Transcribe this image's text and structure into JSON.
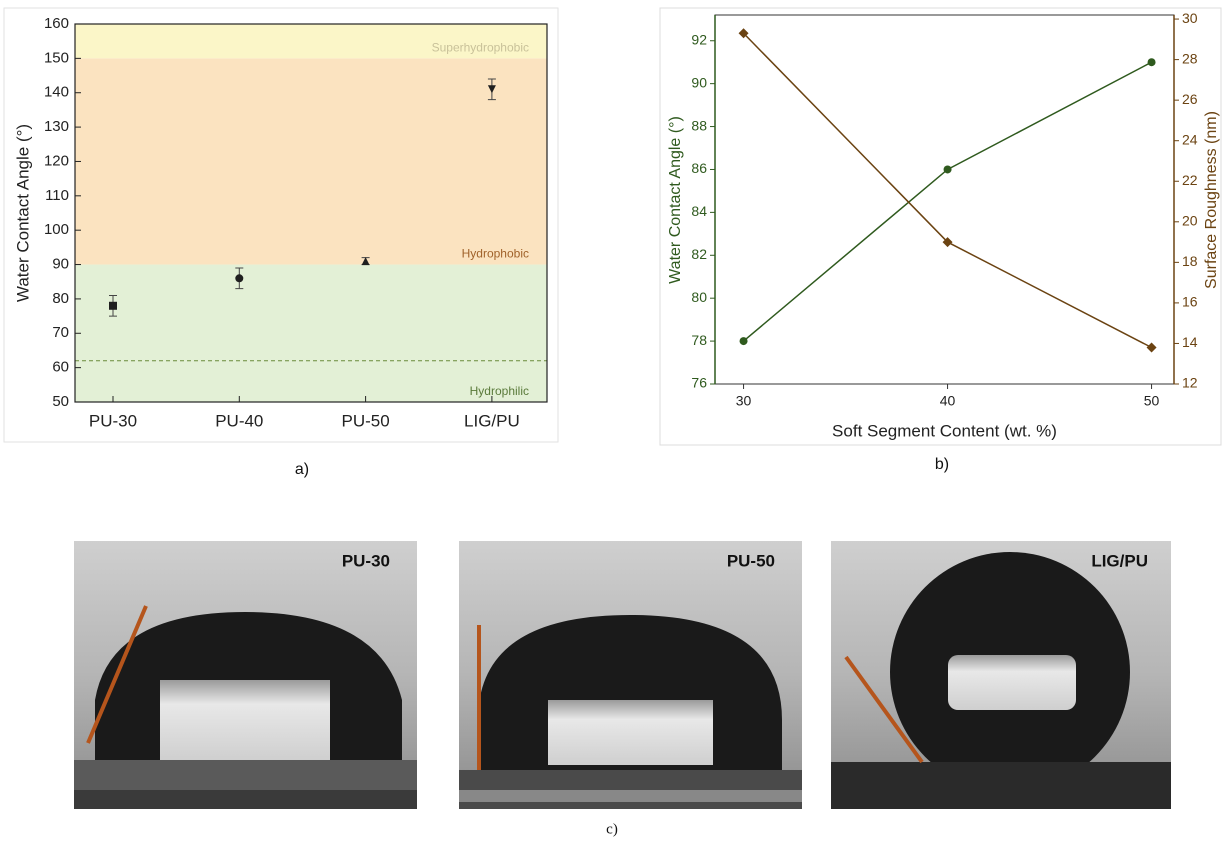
{
  "chart_data": [
    {
      "type": "scatter",
      "y_label": "Water Contact Angle (°)",
      "categories": [
        "PU-30",
        "PU-40",
        "PU-50",
        "LIG/PU"
      ],
      "series": [
        {
          "color": "#1f1f1f",
          "values": [
            78,
            86,
            91,
            141
          ],
          "errors": [
            3,
            3,
            1,
            3
          ],
          "markers": [
            "square",
            "circle",
            "triangle-up",
            "triangle-down"
          ]
        }
      ],
      "ylim": [
        50,
        160
      ],
      "yticks": [
        50,
        60,
        70,
        80,
        90,
        100,
        110,
        120,
        130,
        140,
        150,
        160
      ],
      "regions": [
        {
          "label": "Hydrophilic",
          "from": 50,
          "to": 90,
          "color": "#e3f0d6",
          "label_color": "#5a7a3a"
        },
        {
          "label": "Hydrophobic",
          "from": 90,
          "to": 150,
          "color": "#fbe3c0",
          "label_color": "#a0622a"
        },
        {
          "label": "Superhydrophobic",
          "from": 150,
          "to": 160,
          "color": "#fbf6c8",
          "label_color": "#c9c29a"
        }
      ],
      "reference_line": 62,
      "caption": "a)"
    },
    {
      "type": "line",
      "x_label": "Soft Segment Content (wt. %)",
      "y_label": "Water Contact Angle (°)",
      "y2_label": "Surface Roughness (nm)",
      "x": [
        30,
        40,
        50
      ],
      "series": [
        {
          "color": "#2f5a1e",
          "marker": "circle",
          "values": [
            78,
            86,
            91
          ]
        },
        {
          "color": "#6b4312",
          "marker": "diamond",
          "axis": "y2",
          "values": [
            29.3,
            19.0,
            13.8
          ]
        }
      ],
      "xlim": [
        28.6,
        51.1
      ],
      "xticks": [
        30,
        40,
        50
      ],
      "ylim": [
        76,
        93.2
      ],
      "yticks": [
        76,
        78,
        80,
        82,
        84,
        86,
        88,
        90,
        92
      ],
      "y2lim": [
        12,
        30.2
      ],
      "y2ticks": [
        12,
        14,
        16,
        18,
        20,
        22,
        24,
        26,
        28,
        30
      ],
      "caption": "b)"
    }
  ],
  "photos": {
    "labels": [
      "PU-30",
      "PU-50",
      "LIG/PU"
    ],
    "caption": "c)"
  }
}
